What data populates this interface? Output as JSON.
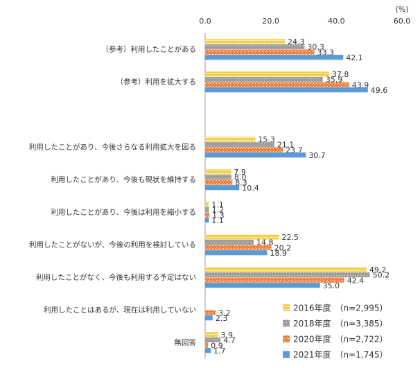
{
  "chart_data": {
    "type": "bar",
    "orientation": "horizontal",
    "x_unit_label": "(%)",
    "categories": [
      "（参考）利用したことがある",
      "（参考）利用を拡大する",
      null,
      "利用したことがあり、今後さらなる利用拡大を図る",
      "利用したことがあり、今後も現状を維持する",
      "利用したことがあり、今後は利用を縮小する",
      "利用したことがないが、今後の利用を検討している",
      "利用したことがなく、今後も利用する予定はない",
      "利用したことはあるが、現在は利用していない",
      "無回答"
    ],
    "series": [
      {
        "name": "2016年度　（n=2,995）",
        "color": "#f2d04a",
        "values": [
          24.3,
          37.8,
          null,
          15.3,
          7.9,
          1.1,
          22.5,
          49.2,
          null,
          3.9
        ],
        "value_labels": [
          "24.3",
          "37.8",
          null,
          "15.3",
          "7.9",
          "1.1",
          "22.5",
          "49.2",
          null,
          "3.9"
        ]
      },
      {
        "name": "2018年度　（n=3,385）",
        "color": "#9e9e9e",
        "values": [
          30.3,
          35.9,
          null,
          21.1,
          8.0,
          1.2,
          14.8,
          50.2,
          null,
          4.7
        ],
        "value_labels": [
          "30.3",
          "35.9",
          null,
          "21.1",
          "8.0",
          "1.2",
          "14.8",
          "50.2",
          null,
          "4.7"
        ]
      },
      {
        "name": "2020年度　（n=2,722）",
        "color": "#ee7d3a",
        "values": [
          33.3,
          43.9,
          null,
          23.7,
          8.3,
          1.3,
          20.2,
          42.4,
          3.2,
          0.9
        ],
        "value_labels": [
          "33.3",
          "43.9",
          null,
          "23.7",
          "8.3",
          "1.3",
          "20.2",
          "42.4",
          "3.2",
          "0.9"
        ]
      },
      {
        "name": "2021年度　（n=1,745）",
        "color": "#5b9bd5",
        "values": [
          42.1,
          49.6,
          null,
          30.7,
          10.4,
          1.1,
          18.9,
          35.0,
          2.3,
          1.7
        ],
        "value_labels": [
          "42.1",
          "49.6",
          null,
          "30.7",
          "10.4",
          "1.1",
          "18.9",
          "35.0",
          "2.3",
          "1.7"
        ]
      }
    ],
    "xlim": [
      0,
      60
    ],
    "xticks": [
      {
        "value": 0,
        "label": "0.0"
      },
      {
        "value": 20,
        "label": "20.0"
      },
      {
        "value": 40,
        "label": "40.0"
      },
      {
        "value": 60,
        "label": "60.0"
      }
    ],
    "grid": false
  }
}
